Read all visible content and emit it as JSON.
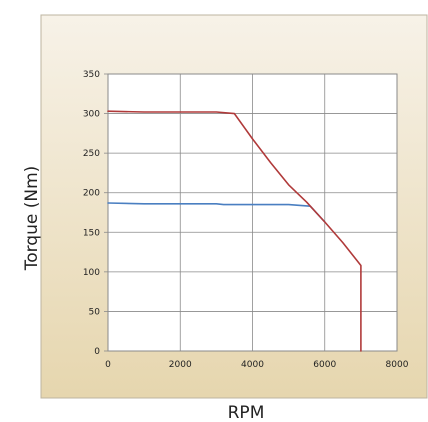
{
  "chart_data": {
    "type": "line",
    "title": "",
    "xlabel": "RPM",
    "ylabel": "Torque (Nm)",
    "xlim": [
      0,
      8000
    ],
    "ylim": [
      0,
      350
    ],
    "x_ticks": [
      0,
      2000,
      4000,
      6000,
      8000
    ],
    "y_ticks": [
      0,
      50,
      100,
      150,
      200,
      250,
      300,
      350
    ],
    "grid": true,
    "legend": "none",
    "series": [
      {
        "color": "#b03a3a",
        "points": [
          [
            0,
            303
          ],
          [
            1000,
            302
          ],
          [
            3000,
            302
          ],
          [
            3500,
            300
          ],
          [
            4000,
            268
          ],
          [
            4500,
            238
          ],
          [
            5000,
            210
          ],
          [
            5500,
            188
          ],
          [
            6000,
            163
          ],
          [
            6500,
            137
          ],
          [
            7000,
            108
          ],
          [
            7000,
            0
          ]
        ]
      },
      {
        "color": "#4a7fc1",
        "points": [
          [
            0,
            187
          ],
          [
            1000,
            186
          ],
          [
            3000,
            186
          ],
          [
            3200,
            185
          ],
          [
            5000,
            185
          ],
          [
            5600,
            183
          ],
          [
            6000,
            163
          ]
        ]
      }
    ]
  },
  "colors": {
    "panel_top": "#f7f2e8",
    "panel_bottom": "#e6d6ae",
    "plot_background": "#ffffff",
    "grid": "#8a8a8a",
    "text": "#222222"
  }
}
